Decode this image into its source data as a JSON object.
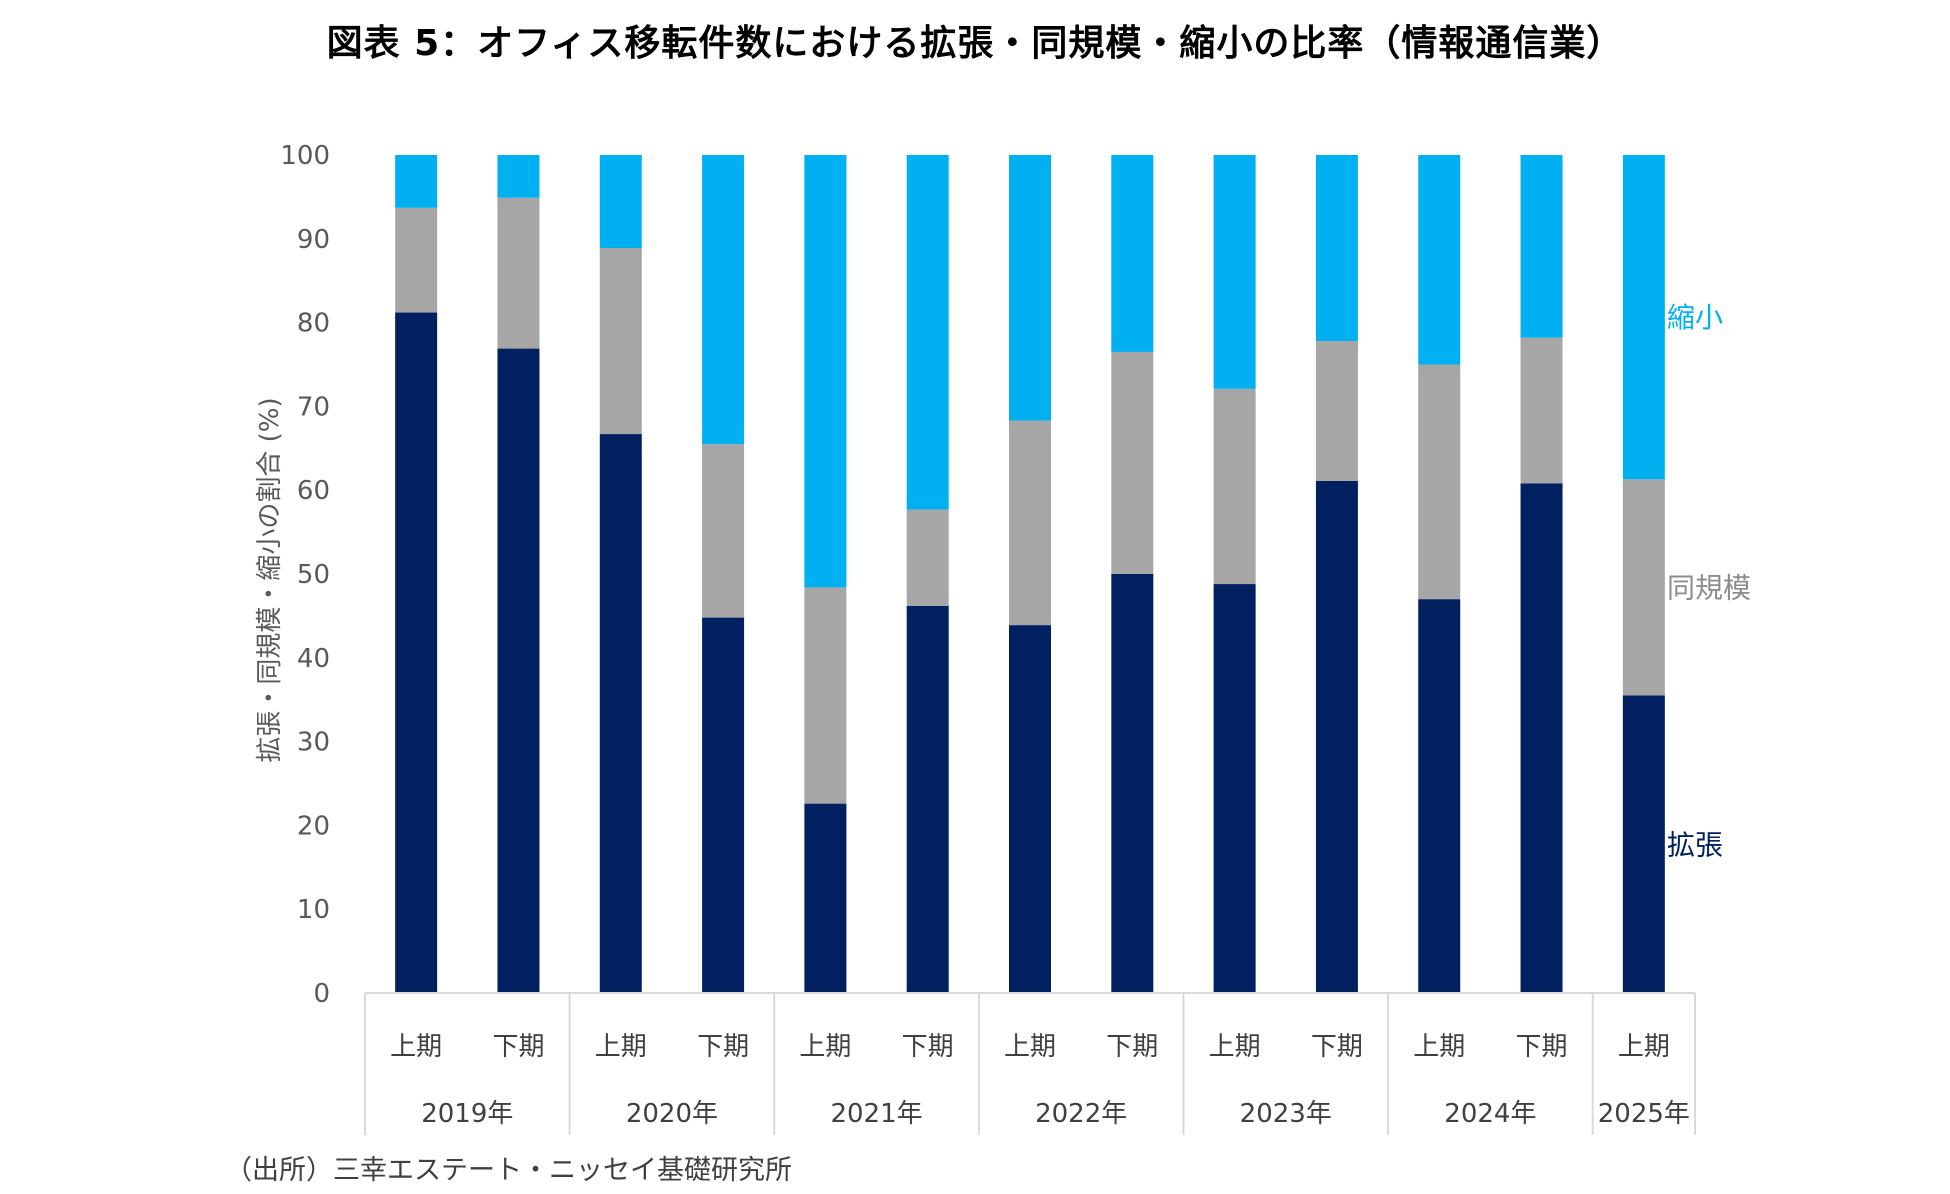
{
  "title": "図表 5：オフィス移転件数における拡張・同規模・縮小の比率（情報通信業）",
  "source": "（出所）三幸エステート・ニッセイ基礎研究所",
  "chart_data": {
    "type": "bar",
    "stacked": true,
    "title": "図表 5：オフィス移転件数における拡張・同規模・縮小の比率（情報通信業）",
    "ylabel": "拡張・同規模・縮小の割合 (%)",
    "ylim": [
      0,
      100
    ],
    "yticks": [
      0,
      10,
      20,
      30,
      40,
      50,
      60,
      70,
      80,
      90,
      100
    ],
    "grid": false,
    "legend": "inline-right",
    "categories": [
      "上期",
      "下期",
      "上期",
      "下期",
      "上期",
      "下期",
      "上期",
      "下期",
      "上期",
      "下期",
      "上期",
      "下期",
      "上期"
    ],
    "groups": [
      {
        "label": "2019年",
        "count": 2
      },
      {
        "label": "2020年",
        "count": 2
      },
      {
        "label": "2021年",
        "count": 2
      },
      {
        "label": "2022年",
        "count": 2
      },
      {
        "label": "2023年",
        "count": 2
      },
      {
        "label": "2024年",
        "count": 2
      },
      {
        "label": "2025年",
        "count": 1
      }
    ],
    "series": [
      {
        "name": "拡張",
        "color": "#002060",
        "values": [
          81.2,
          76.9,
          66.7,
          44.8,
          22.6,
          46.2,
          43.9,
          50.0,
          48.8,
          61.1,
          47.0,
          60.8,
          35.5
        ]
      },
      {
        "name": "同規模",
        "color": "#a6a6a6",
        "values": [
          12.5,
          18.0,
          22.2,
          20.7,
          25.8,
          11.5,
          24.4,
          26.5,
          23.3,
          16.7,
          28.0,
          17.4,
          25.8
        ]
      },
      {
        "name": "縮小",
        "color": "#00b0f0",
        "values": [
          6.3,
          5.1,
          11.1,
          34.5,
          51.6,
          42.3,
          31.7,
          23.5,
          27.9,
          22.2,
          25.0,
          21.8,
          38.7
        ]
      }
    ]
  }
}
